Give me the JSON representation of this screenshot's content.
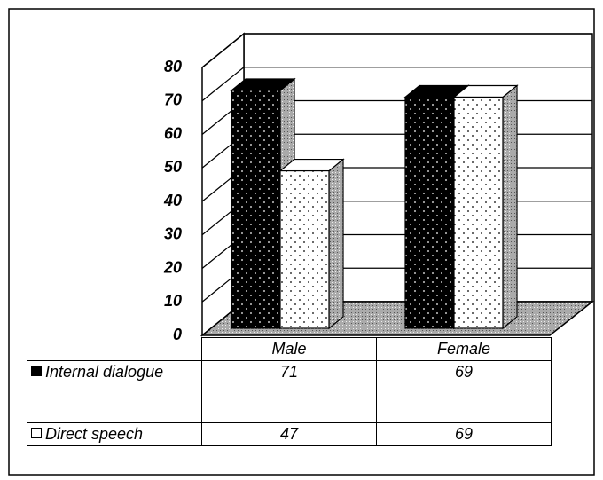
{
  "chart_data": {
    "type": "bar3d",
    "categories": [
      "Male",
      "Female"
    ],
    "series": [
      {
        "name": "Internal dialogue",
        "color": "#000000",
        "values": [
          71,
          69
        ]
      },
      {
        "name": "Direct speech",
        "color": "#ffffff",
        "values": [
          47,
          69
        ]
      }
    ],
    "ylim": [
      0,
      80
    ],
    "yticks": [
      0,
      10,
      20,
      30,
      40,
      50,
      60,
      70,
      80
    ],
    "grid": true
  }
}
